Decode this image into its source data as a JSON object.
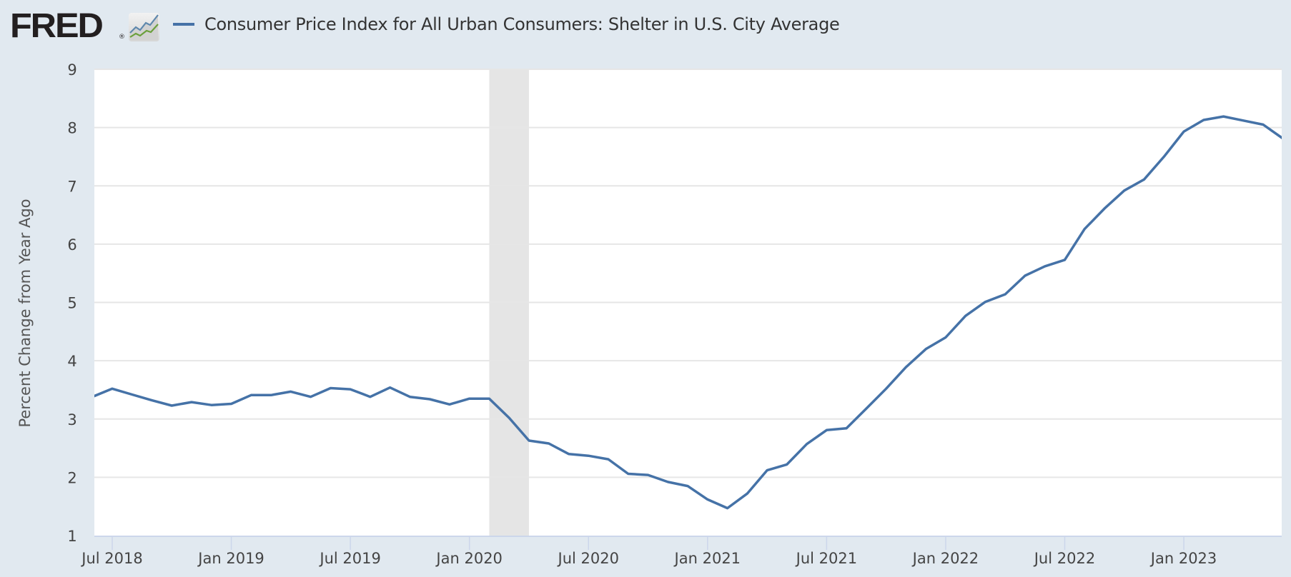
{
  "header": {
    "logo_text": "FRED",
    "logo_registered": "®",
    "logo_icon": "line-chart-icon"
  },
  "colors": {
    "series": "#4572a7",
    "background": "#e1e9f0",
    "plot_background": "#ffffff",
    "gridline": "#e6e6e6",
    "recession": "#e5e5e5"
  },
  "chart_data": {
    "type": "line",
    "title": "",
    "legend": [
      {
        "name": "Consumer Price Index for All Urban Consumers: Shelter in U.S. City Average",
        "color": "#4572a7"
      }
    ],
    "legend_placement": "top",
    "xlabel": "",
    "ylabel": "Percent Change from Year Ago",
    "ylim": [
      1,
      9
    ],
    "yticks": [
      1,
      2,
      3,
      4,
      5,
      6,
      7,
      8,
      9
    ],
    "xlim": [
      "2018-06",
      "2023-06"
    ],
    "xticks": [
      {
        "date": "2018-07",
        "label": "Jul 2018"
      },
      {
        "date": "2019-01",
        "label": "Jan 2019"
      },
      {
        "date": "2019-07",
        "label": "Jul 2019"
      },
      {
        "date": "2020-01",
        "label": "Jan 2020"
      },
      {
        "date": "2020-07",
        "label": "Jul 2020"
      },
      {
        "date": "2021-01",
        "label": "Jan 2021"
      },
      {
        "date": "2021-07",
        "label": "Jul 2021"
      },
      {
        "date": "2022-01",
        "label": "Jan 2022"
      },
      {
        "date": "2022-07",
        "label": "Jul 2022"
      },
      {
        "date": "2023-01",
        "label": "Jan 2023"
      }
    ],
    "grid": true,
    "recessions": [
      {
        "start": "2020-02",
        "end": "2020-04"
      }
    ],
    "series": [
      {
        "name": "Consumer Price Index for All Urban Consumers: Shelter in U.S. City Average",
        "x": [
          "2018-06",
          "2018-07",
          "2018-08",
          "2018-09",
          "2018-10",
          "2018-11",
          "2018-12",
          "2019-01",
          "2019-02",
          "2019-03",
          "2019-04",
          "2019-05",
          "2019-06",
          "2019-07",
          "2019-08",
          "2019-09",
          "2019-10",
          "2019-11",
          "2019-12",
          "2020-01",
          "2020-02",
          "2020-03",
          "2020-04",
          "2020-05",
          "2020-06",
          "2020-07",
          "2020-08",
          "2020-09",
          "2020-10",
          "2020-11",
          "2020-12",
          "2021-01",
          "2021-02",
          "2021-03",
          "2021-04",
          "2021-05",
          "2021-06",
          "2021-07",
          "2021-08",
          "2021-09",
          "2021-10",
          "2021-11",
          "2021-12",
          "2022-01",
          "2022-02",
          "2022-03",
          "2022-04",
          "2022-05",
          "2022-06",
          "2022-07",
          "2022-08",
          "2022-09",
          "2022-10",
          "2022-11",
          "2022-12",
          "2023-01",
          "2023-02",
          "2023-03",
          "2023-04",
          "2023-05",
          "2023-06"
        ],
        "values": [
          3.38,
          3.52,
          3.42,
          3.32,
          3.23,
          3.29,
          3.24,
          3.26,
          3.41,
          3.41,
          3.47,
          3.38,
          3.53,
          3.51,
          3.38,
          3.54,
          3.38,
          3.34,
          3.25,
          3.35,
          3.35,
          3.02,
          2.63,
          2.58,
          2.4,
          2.37,
          2.31,
          2.06,
          2.04,
          1.92,
          1.85,
          1.62,
          1.47,
          1.72,
          2.12,
          2.22,
          2.57,
          2.81,
          2.84,
          3.18,
          3.52,
          3.89,
          4.2,
          4.4,
          4.77,
          5.01,
          5.14,
          5.46,
          5.62,
          5.73,
          6.26,
          6.61,
          6.92,
          7.11,
          7.5,
          7.93,
          8.13,
          8.19,
          8.12,
          8.05,
          7.81
        ]
      }
    ]
  }
}
